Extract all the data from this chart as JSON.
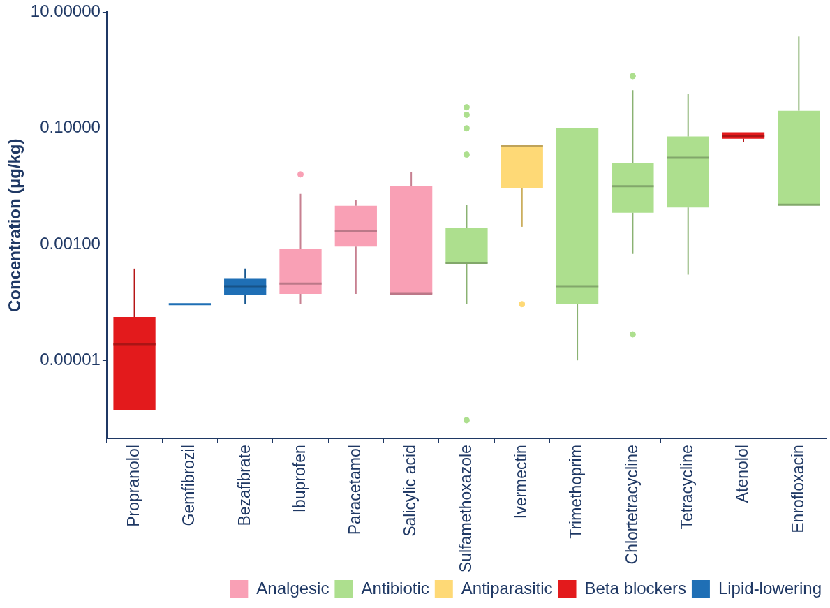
{
  "chart_data": {
    "type": "box",
    "ylabel": "Concentration (µg/kg)",
    "log": true,
    "legend": "bottom",
    "categories": [
      "Propranolol",
      "Gemfibrozil",
      "Bezafibrate",
      "Ibuprofen",
      "Paracetamol",
      "Salicylic acid",
      "Sulfamethoxazole",
      "Ivermectin",
      "Trimethoprim",
      "Chlortetracycline",
      "Tetracycline",
      "Atenolol",
      "Enrofloxacin"
    ],
    "ylim": [
      4.5e-07,
      10
    ],
    "yticks": [
      {
        "value": 10,
        "label": "10.00000"
      },
      {
        "value": 0.1,
        "label": "0.10000"
      },
      {
        "value": 0.001,
        "label": "0.00100"
      },
      {
        "value": 1e-05,
        "label": "0.00001"
      }
    ],
    "series": [
      {
        "name": "Analgesic",
        "color": "#f9a0b5",
        "boxes": [
          null,
          null,
          null,
          {
            "low": 9.3e-05,
            "q1": 0.00014,
            "median": 0.00021,
            "q3": 0.00083,
            "high": 0.0074,
            "outliers": [
              0.016
            ]
          },
          {
            "low": 0.00014,
            "q1": 0.00091,
            "median": 0.0017,
            "q3": 0.0046,
            "high": 0.0058
          },
          {
            "low": 0.00014,
            "q1": 0.00014,
            "median": 0.00014,
            "q3": 0.01,
            "high": 0.0174
          },
          null,
          null,
          null,
          null,
          null,
          null,
          null
        ]
      },
      {
        "name": "Antibiotic",
        "color": "#addf8e",
        "boxes": [
          null,
          null,
          null,
          null,
          null,
          null,
          {
            "low": 9.3e-05,
            "q1": 0.00048,
            "median": 0.00048,
            "q3": 0.0019,
            "high": 0.0048,
            "outliers": [
              0.23,
              0.17,
              0.1,
              0.035,
              9.3e-07
            ]
          },
          null,
          {
            "low": 1e-05,
            "q1": 9.3e-05,
            "median": 0.00019,
            "q3": 0.1,
            "high": 0.1
          },
          {
            "low": 0.00068,
            "q1": 0.0035,
            "median": 0.01,
            "q3": 0.025,
            "high": 0.45,
            "outliers": [
              0.79,
              2.8e-05
            ]
          },
          {
            "low": 0.0003,
            "q1": 0.0043,
            "median": 0.031,
            "q3": 0.072,
            "high": 0.39
          },
          null,
          {
            "low": 0.0048,
            "q1": 0.0048,
            "median": 0.0048,
            "q3": 0.2,
            "high": 3.8
          }
        ]
      },
      {
        "name": "Antiparasitic",
        "color": "#fed976",
        "boxes": [
          null,
          null,
          null,
          null,
          null,
          null,
          null,
          {
            "low": 0.002,
            "q1": 0.0093,
            "median": 0.049,
            "q3": 0.049,
            "high": 0.049,
            "outliers": [
              9.3e-05
            ]
          },
          null,
          null,
          null,
          null,
          null
        ]
      },
      {
        "name": "Beta blockers",
        "color": "#e31a1c",
        "boxes": [
          {
            "low": 1.4e-06,
            "q1": 1.4e-06,
            "median": 1.9e-05,
            "q3": 5.6e-05,
            "high": 0.00038
          },
          null,
          null,
          null,
          null,
          null,
          null,
          null,
          null,
          null,
          null,
          {
            "low": 0.058,
            "q1": 0.066,
            "median": 0.074,
            "q3": 0.085,
            "high": 0.085
          },
          null
        ]
      },
      {
        "name": "Lipid-lowering",
        "color": "#1f6fb5",
        "boxes": [
          null,
          {
            "low": 9.3e-05,
            "q1": 9.3e-05,
            "median": 9.3e-05,
            "q3": 9.3e-05,
            "high": 9.3e-05
          },
          {
            "low": 9.3e-05,
            "q1": 0.000135,
            "median": 0.00019,
            "q3": 0.00026,
            "high": 0.00038
          },
          null,
          null,
          null,
          null,
          null,
          null,
          null,
          null,
          null,
          null
        ]
      }
    ]
  }
}
